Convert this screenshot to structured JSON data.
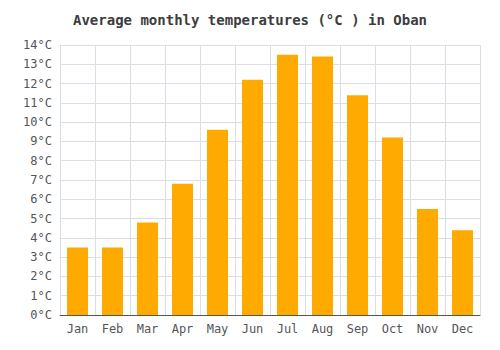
{
  "chart_data": {
    "type": "bar",
    "title": "Average monthly temperatures (°C ) in Oban",
    "categories": [
      "Jan",
      "Feb",
      "Mar",
      "Apr",
      "May",
      "Jun",
      "Jul",
      "Aug",
      "Sep",
      "Oct",
      "Nov",
      "Dec"
    ],
    "values": [
      3.5,
      3.5,
      4.8,
      6.8,
      9.6,
      12.2,
      13.5,
      13.4,
      11.4,
      9.2,
      5.5,
      4.4
    ],
    "color": "#FFAA00",
    "ylim": [
      0,
      14
    ],
    "yticks": [
      {
        "value": 0,
        "label": "0°C"
      },
      {
        "value": 1,
        "label": "1°C"
      },
      {
        "value": 2,
        "label": "2°C"
      },
      {
        "value": 3,
        "label": "3°C"
      },
      {
        "value": 4,
        "label": "4°C"
      },
      {
        "value": 5,
        "label": "5°C"
      },
      {
        "value": 6,
        "label": "6°C"
      },
      {
        "value": 7,
        "label": "7°C"
      },
      {
        "value": 8,
        "label": "8°C"
      },
      {
        "value": 9,
        "label": "9°C"
      },
      {
        "value": 10,
        "label": "10°C"
      },
      {
        "value": 11,
        "label": "11°C"
      },
      {
        "value": 12,
        "label": "12°C"
      },
      {
        "value": 13,
        "label": "13°C"
      },
      {
        "value": 14,
        "label": "14°C"
      }
    ],
    "grid": true
  }
}
